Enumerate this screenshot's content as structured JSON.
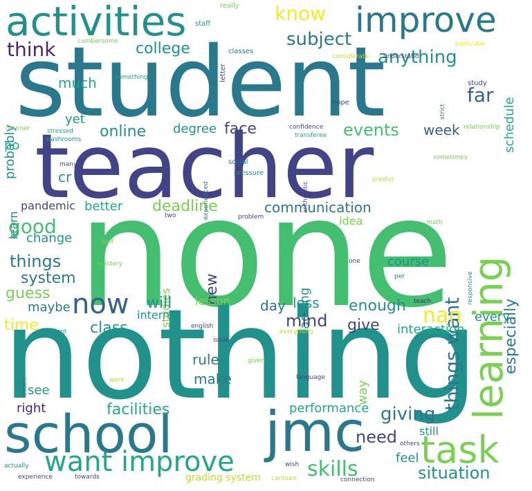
{
  "palette": {
    "dark_purple": "#482475",
    "indigo": "#414487",
    "blue": "#355f8d",
    "teal_blue": "#2a788e",
    "teal": "#21918c",
    "sea_green": "#22a884",
    "green": "#44bf70",
    "light_green": "#7ad151",
    "yellow_green": "#bddf26",
    "yellow": "#fde725",
    "background": "#ffffff"
  },
  "words": {
    "student": "student",
    "teacher": "teacher",
    "none": "none",
    "nothing": "nothing",
    "school": "school",
    "jmc": "jmc",
    "activities": "activities",
    "improve": "improve",
    "learning": "learning",
    "task": "task",
    "want_improve": "want improve",
    "know": "know",
    "think": "think",
    "college": "college",
    "subject": "subject",
    "anything": "anything",
    "much": "much",
    "far": "far",
    "schedule": "schedule",
    "yet": "yet",
    "online": "online",
    "degree": "degree",
    "face": "face",
    "events": "events",
    "week": "week",
    "probably": "probably",
    "po": "po",
    "cr": "cr",
    "learn": "learn",
    "deadline": "deadline",
    "things_want": "things want",
    "especially": "especially",
    "pandemic": "pandemic",
    "better": "better",
    "communication": "communication",
    "good": "good",
    "change": "change",
    "idea": "idea",
    "things": "things",
    "system": "system",
    "new": "new",
    "now": "now",
    "studies": "studies",
    "teaching": "teaching",
    "course": "course",
    "guess": "guess",
    "maybe": "maybe",
    "will": "will",
    "lesson": "lesson",
    "day": "day",
    "less": "less",
    "enough": "enough",
    "internet": "internet",
    "mind": "mind",
    "nan": "nan",
    "every": "every",
    "time": "time",
    "class": "class",
    "give": "give",
    "interaction": "interaction",
    "rule": "rule",
    "make": "make",
    "way": "way",
    "see": "see",
    "right": "right",
    "facilities": "facilities",
    "performance": "performance",
    "giving": "giving",
    "need": "need",
    "still": "still",
    "feel": "feel",
    "skills": "skills",
    "situation": "situation",
    "grading_system": "grading system",
    "really": "really",
    "staff": "staff",
    "cumbersome": "cumbersome",
    "letter": "letter",
    "classes": "classes",
    "particular": "particular",
    "considerate": "considerate",
    "understand": "understand",
    "something": "something",
    "study": "study",
    "strict": "strict",
    "hope": "hope",
    "manner": "manner",
    "stressed": "stressed",
    "washrooms": "washrooms",
    "confidence": "confidence",
    "transferee": "transferee",
    "relationship": "relationship",
    "experienced": "experienced",
    "arithmetic": "arithmetic",
    "social": "social",
    "pressure": "pressure",
    "sometimes": "sometimes",
    "many": "many",
    "predict": "predict",
    "two": "two",
    "problem": "problem",
    "math": "math",
    "well": "well",
    "responsive": "responsive",
    "mastery": "mastery",
    "one": "one",
    "per": "per",
    "teach": "teach",
    "dont": "dont",
    "english": "english",
    "everything": "everything",
    "issue": "issue",
    "lessen": "lessen",
    "given": "given",
    "language": "language",
    "work": "work",
    "others": "others",
    "actually": "actually",
    "wish": "wish",
    "experience": "experience",
    "towards": "towards",
    "canteen": "canteen",
    "connection": "connection"
  }
}
